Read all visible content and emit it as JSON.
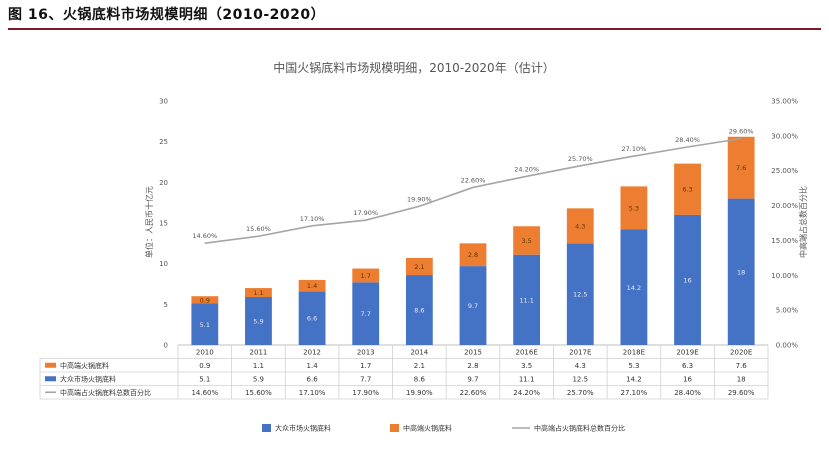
{
  "figure_title": "图 16、火锅底料市场规模明细（2010-2020）",
  "chart_data": {
    "type": "bar",
    "title": "中国火锅底料市场规模明细，2010-2020年（估计）",
    "ylabel": "单位：人民币十亿元",
    "y2label": "中高端占总数百分比",
    "ylim": [
      0,
      30
    ],
    "y2lim": [
      0,
      35
    ],
    "yticks": [
      "0",
      "5",
      "10",
      "15",
      "20",
      "25",
      "30"
    ],
    "y2ticks": [
      "0.00%",
      "5.00%",
      "10.00%",
      "15.00%",
      "20.00%",
      "25.00%",
      "30.00%",
      "35.00%"
    ],
    "categories": [
      "2010",
      "2011",
      "2012",
      "2013",
      "2014",
      "2015",
      "2016E",
      "2017E",
      "2018E",
      "2019E",
      "2020E"
    ],
    "series": [
      {
        "name": "大众市场火锅底料",
        "kind": "bar",
        "color": "#4472c4",
        "values": [
          5.1,
          5.9,
          6.6,
          7.7,
          8.6,
          9.7,
          11.1,
          12.5,
          14.2,
          16,
          18
        ],
        "labels": [
          "5.1",
          "5.9",
          "6.6",
          "7.7",
          "8.6",
          "9.7",
          "11.1",
          "12.5",
          "14.2",
          "16",
          "18"
        ]
      },
      {
        "name": "中高端火锅底料",
        "kind": "bar",
        "color": "#ed7d31",
        "values": [
          0.9,
          1.1,
          1.4,
          1.7,
          2.1,
          2.8,
          3.5,
          4.3,
          5.3,
          6.3,
          7.6
        ],
        "labels": [
          "0.9",
          "1.1",
          "1.4",
          "1.7",
          "2.1",
          "2.8",
          "3.5",
          "4.3",
          "5.3",
          "6.3",
          "7.6"
        ]
      },
      {
        "name": "中高端占火锅底料总数百分比",
        "kind": "line",
        "axis": "right",
        "color": "#a5a5a5",
        "values": [
          14.6,
          15.6,
          17.1,
          17.9,
          19.9,
          22.6,
          24.2,
          25.7,
          27.1,
          28.4,
          29.6
        ],
        "labels": [
          "14.60%",
          "15.60%",
          "17.10%",
          "17.90%",
          "19.90%",
          "22.60%",
          "24.20%",
          "25.70%",
          "27.10%",
          "28.40%",
          "29.60%"
        ]
      }
    ],
    "table": {
      "row_order": [
        1,
        0,
        2
      ],
      "row_names": [
        "中高端火锅底料",
        "大众市场火锅底料",
        "中高端占火锅底料总数百分比"
      ]
    },
    "legend": {
      "position": "bottom",
      "entries": [
        "大众市场火锅底料",
        "中高端火锅底料",
        "中高端占火锅底料总数百分比"
      ]
    }
  }
}
